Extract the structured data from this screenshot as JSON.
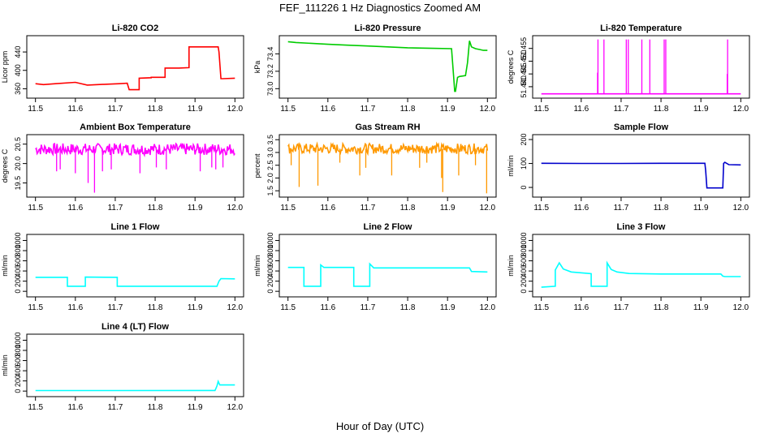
{
  "figure": {
    "title": "FEF_111226  1 Hz Diagnostics Zoomed AM",
    "xlabel": "Hour of Day (UTC)"
  },
  "chart_data": [
    {
      "type": "line",
      "title": "Li-820 CO2",
      "ylabel": "Licor ppm",
      "color": "#ff0000",
      "xlim": [
        11.5,
        12.0
      ],
      "ylim": [
        345,
        470
      ],
      "xticks": [
        "11.5",
        "11.6",
        "11.7",
        "11.8",
        "11.9",
        "12.0"
      ],
      "yticks": [
        {
          "v": 360,
          "label": "360"
        },
        {
          "v": 400,
          "label": "400"
        },
        {
          "v": 440,
          "label": "440"
        }
      ],
      "series": [
        {
          "x": [
            11.5,
            11.52,
            11.55,
            11.6,
            11.63,
            11.68,
            11.71,
            11.73,
            11.735,
            11.76,
            11.76,
            11.76,
            11.79,
            11.79,
            11.825,
            11.825,
            11.86,
            11.86,
            11.885,
            11.885,
            11.9,
            11.93,
            11.958,
            11.96,
            11.965,
            11.97,
            12.0
          ],
          "y": [
            371,
            369,
            371,
            374,
            368,
            370,
            371,
            372,
            358,
            358,
            358,
            383,
            384,
            385,
            385,
            405,
            405,
            405,
            406,
            451,
            451,
            451,
            451,
            440,
            382,
            382,
            383
          ]
        }
      ],
      "spikes": []
    },
    {
      "type": "line",
      "title": "Li-820 Pressure",
      "ylabel": "kPa",
      "color": "#00cc00",
      "xlim": [
        11.5,
        12.0
      ],
      "ylim": [
        72.92,
        73.58
      ],
      "xticks": [
        "11.5",
        "11.6",
        "11.7",
        "11.8",
        "11.9",
        "12.0"
      ],
      "yticks": [
        {
          "v": 73.0,
          "label": "73.0"
        },
        {
          "v": 73.2,
          "label": "73.2"
        },
        {
          "v": 73.4,
          "label": "73.4"
        }
      ],
      "series": [
        {
          "x": [
            11.5,
            11.52,
            11.6,
            11.65,
            11.7,
            11.8,
            11.85,
            11.91,
            11.915,
            11.918,
            11.92,
            11.925,
            11.93,
            11.945,
            11.95,
            11.955,
            11.96,
            11.97,
            11.98,
            11.99,
            12.0
          ],
          "y": [
            73.54,
            73.53,
            73.51,
            73.5,
            73.49,
            73.47,
            73.465,
            73.46,
            73.15,
            72.97,
            72.97,
            73.13,
            73.14,
            73.15,
            73.3,
            73.55,
            73.48,
            73.46,
            73.45,
            73.44,
            73.44
          ]
        }
      ],
      "spikes": []
    },
    {
      "type": "line",
      "title": "Li-820 Temperature",
      "ylabel": "degrees C",
      "color": "#ff00ff",
      "xlim": [
        11.5,
        12.0
      ],
      "ylim": [
        51.4365,
        51.459
      ],
      "xticks": [
        "11.5",
        "11.6",
        "11.7",
        "11.8",
        "11.9",
        "12.0"
      ],
      "yticks": [
        {
          "v": 51.44,
          "label": "51.440"
        },
        {
          "v": 51.445,
          "label": "51.445"
        },
        {
          "v": 51.45,
          "label": "51.450"
        },
        {
          "v": 51.455,
          "label": "51.455"
        }
      ],
      "series": [
        {
          "x": [
            11.5,
            12.0
          ],
          "y": [
            51.4372,
            51.4372
          ]
        }
      ],
      "spikes": [
        {
          "x": 11.642,
          "y": 51.4585
        },
        {
          "x": 11.657,
          "y": 51.4585
        },
        {
          "x": 11.713,
          "y": 51.4585
        },
        {
          "x": 11.718,
          "y": 51.4585
        },
        {
          "x": 11.752,
          "y": 51.4585
        },
        {
          "x": 11.772,
          "y": 51.4585
        },
        {
          "x": 11.808,
          "y": 51.4585
        },
        {
          "x": 11.812,
          "y": 51.4585
        },
        {
          "x": 11.967,
          "y": 51.4585
        },
        {
          "x": 11.641,
          "y": 51.4455
        },
        {
          "x": 11.966,
          "y": 51.445
        }
      ]
    },
    {
      "type": "line",
      "title": "Ambient Box Temperature",
      "ylabel": "degrees C",
      "color": "#ff00ff",
      "xlim": [
        11.5,
        12.0
      ],
      "ylim": [
        19.2,
        20.68
      ],
      "xticks": [
        "11.5",
        "11.6",
        "11.7",
        "11.8",
        "11.9",
        "12.0"
      ],
      "yticks": [
        {
          "v": 19.5,
          "label": "19.5"
        },
        {
          "v": 20.0,
          "label": "20.0"
        },
        {
          "v": 20.5,
          "label": "20.5"
        }
      ],
      "series": [
        {
          "x": [
            11.5,
            12.0
          ],
          "y": [
            20.37,
            20.37
          ]
        }
      ],
      "noise": 0.15,
      "spikes": [
        {
          "x": 11.553,
          "y": 19.8
        },
        {
          "x": 11.562,
          "y": 19.85
        },
        {
          "x": 11.6,
          "y": 19.75
        },
        {
          "x": 11.632,
          "y": 19.5
        },
        {
          "x": 11.648,
          "y": 19.25
        },
        {
          "x": 11.668,
          "y": 19.8
        },
        {
          "x": 11.69,
          "y": 19.85
        },
        {
          "x": 11.762,
          "y": 19.75
        },
        {
          "x": 11.803,
          "y": 19.9
        },
        {
          "x": 11.828,
          "y": 19.85
        },
        {
          "x": 11.913,
          "y": 19.8
        },
        {
          "x": 11.942,
          "y": 19.9
        },
        {
          "x": 11.952,
          "y": 19.85
        },
        {
          "x": 11.97,
          "y": 19.9
        }
      ]
    },
    {
      "type": "line",
      "title": "Gas Stream RH",
      "ylabel": "percent",
      "color": "#ff9900",
      "xlim": [
        11.5,
        12.0
      ],
      "ylim": [
        1.35,
        3.6
      ],
      "xticks": [
        "11.5",
        "11.6",
        "11.7",
        "11.8",
        "11.9",
        "12.0"
      ],
      "yticks": [
        {
          "v": 1.5,
          "label": "1.5"
        },
        {
          "v": 2.0,
          "label": "2.0"
        },
        {
          "v": 2.5,
          "label": "2.5"
        },
        {
          "v": 3.0,
          "label": "3.0"
        },
        {
          "v": 3.5,
          "label": "3.5"
        }
      ],
      "series": [
        {
          "x": [
            11.5,
            12.0
          ],
          "y": [
            3.15,
            3.15
          ]
        }
      ],
      "noise": 0.2,
      "spikes": [
        {
          "x": 11.508,
          "y": 2.5
        },
        {
          "x": 11.528,
          "y": 1.65
        },
        {
          "x": 11.575,
          "y": 1.7
        },
        {
          "x": 11.63,
          "y": 2.6
        },
        {
          "x": 11.68,
          "y": 2.1
        },
        {
          "x": 11.695,
          "y": 2.4
        },
        {
          "x": 11.76,
          "y": 2.1
        },
        {
          "x": 11.83,
          "y": 2.4
        },
        {
          "x": 11.848,
          "y": 2.6
        },
        {
          "x": 11.885,
          "y": 2.0
        },
        {
          "x": 11.888,
          "y": 1.45
        },
        {
          "x": 11.928,
          "y": 2.1
        },
        {
          "x": 11.97,
          "y": 2.5
        },
        {
          "x": 11.998,
          "y": 1.4
        }
      ]
    },
    {
      "type": "line",
      "title": "Sample Flow",
      "ylabel": "ml/min",
      "color": "#0000cc",
      "xlim": [
        11.5,
        12.0
      ],
      "ylim": [
        -30,
        210
      ],
      "xticks": [
        "11.5",
        "11.6",
        "11.7",
        "11.8",
        "11.9",
        "12.0"
      ],
      "yticks": [
        {
          "v": 0,
          "label": "0"
        },
        {
          "v": 100,
          "label": "100"
        },
        {
          "v": 200,
          "label": "200"
        }
      ],
      "series": [
        {
          "x": [
            11.5,
            11.6,
            11.7,
            11.8,
            11.91,
            11.912,
            11.915,
            11.955,
            11.957,
            11.96,
            11.97,
            12.0
          ],
          "y": [
            101,
            100,
            100,
            101,
            101,
            70,
            -2,
            -2,
            100,
            105,
            95,
            94
          ]
        }
      ],
      "spikes": []
    },
    {
      "type": "line",
      "title": "Line 1 Flow",
      "ylabel": "ml/min",
      "color": "#00ffff",
      "xlim": [
        11.5,
        12.0
      ],
      "ylim": [
        -60,
        1070
      ],
      "xticks": [
        "11.5",
        "11.6",
        "11.7",
        "11.8",
        "11.9",
        "12.0"
      ],
      "yticks": [
        {
          "v": 0,
          "label": "0"
        },
        {
          "v": 200,
          "label": "200"
        },
        {
          "v": 400,
          "label": "400"
        },
        {
          "v": 600,
          "label": "600"
        },
        {
          "v": 800,
          "label": "800"
        },
        {
          "v": 1000,
          "label": "1000"
        }
      ],
      "series": [
        {
          "x": [
            11.5,
            11.58,
            11.58,
            11.625,
            11.625,
            11.705,
            11.705,
            11.955,
            11.96,
            11.965,
            12.0
          ],
          "y": [
            275,
            275,
            100,
            100,
            280,
            275,
            100,
            100,
            200,
            250,
            245
          ]
        }
      ],
      "spikes": []
    },
    {
      "type": "line",
      "title": "Line 2 Flow",
      "ylabel": "ml/min",
      "color": "#00ffff",
      "xlim": [
        11.5,
        12.0
      ],
      "ylim": [
        -60,
        1070
      ],
      "xticks": [
        "11.5",
        "11.6",
        "11.7",
        "11.8",
        "11.9",
        "12.0"
      ],
      "yticks": [
        {
          "v": 0,
          "label": "0"
        },
        {
          "v": 200,
          "label": "200"
        },
        {
          "v": 400,
          "label": "400"
        },
        {
          "v": 600,
          "label": "600"
        },
        {
          "v": 800,
          "label": "800"
        },
        {
          "v": 1000,
          "label": "1000"
        }
      ],
      "series": [
        {
          "x": [
            11.5,
            11.54,
            11.54,
            11.582,
            11.582,
            11.59,
            11.665,
            11.665,
            11.705,
            11.705,
            11.715,
            11.8,
            11.955,
            11.96,
            12.0
          ],
          "y": [
            470,
            470,
            100,
            100,
            520,
            470,
            470,
            100,
            100,
            540,
            460,
            460,
            460,
            390,
            380
          ]
        }
      ],
      "spikes": []
    },
    {
      "type": "line",
      "title": "Line 3 Flow",
      "ylabel": "ml/min",
      "color": "#00ffff",
      "xlim": [
        11.5,
        12.0
      ],
      "ylim": [
        -60,
        1070
      ],
      "xticks": [
        "11.5",
        "11.6",
        "11.7",
        "11.8",
        "11.9",
        "12.0"
      ],
      "yticks": [
        {
          "v": 0,
          "label": "0"
        },
        {
          "v": 200,
          "label": "200"
        },
        {
          "v": 400,
          "label": "400"
        },
        {
          "v": 600,
          "label": "600"
        },
        {
          "v": 800,
          "label": "800"
        },
        {
          "v": 1000,
          "label": "1000"
        }
      ],
      "series": [
        {
          "x": [
            11.5,
            11.535,
            11.535,
            11.545,
            11.555,
            11.575,
            11.62,
            11.625,
            11.625,
            11.665,
            11.665,
            11.675,
            11.69,
            11.72,
            11.8,
            11.95,
            11.955,
            11.96,
            12.0
          ],
          "y": [
            80,
            100,
            420,
            560,
            440,
            380,
            350,
            345,
            100,
            100,
            560,
            430,
            380,
            350,
            340,
            340,
            300,
            290,
            290
          ]
        }
      ],
      "spikes": []
    },
    {
      "type": "line",
      "title": "Line 4 (LT) Flow",
      "ylabel": "ml/min",
      "color": "#00ffff",
      "xlim": [
        11.5,
        12.0
      ],
      "ylim": [
        -60,
        1070
      ],
      "xticks": [
        "11.5",
        "11.6",
        "11.7",
        "11.8",
        "11.9",
        "12.0"
      ],
      "yticks": [
        {
          "v": 0,
          "label": "0"
        },
        {
          "v": 200,
          "label": "200"
        },
        {
          "v": 400,
          "label": "400"
        },
        {
          "v": 600,
          "label": "600"
        },
        {
          "v": 800,
          "label": "800"
        },
        {
          "v": 1000,
          "label": "1000"
        }
      ],
      "series": [
        {
          "x": [
            11.5,
            11.7,
            11.95,
            11.955,
            11.958,
            11.962,
            11.97,
            12.0
          ],
          "y": [
            10,
            10,
            12,
            100,
            190,
            120,
            120,
            120
          ]
        }
      ],
      "spikes": []
    }
  ]
}
